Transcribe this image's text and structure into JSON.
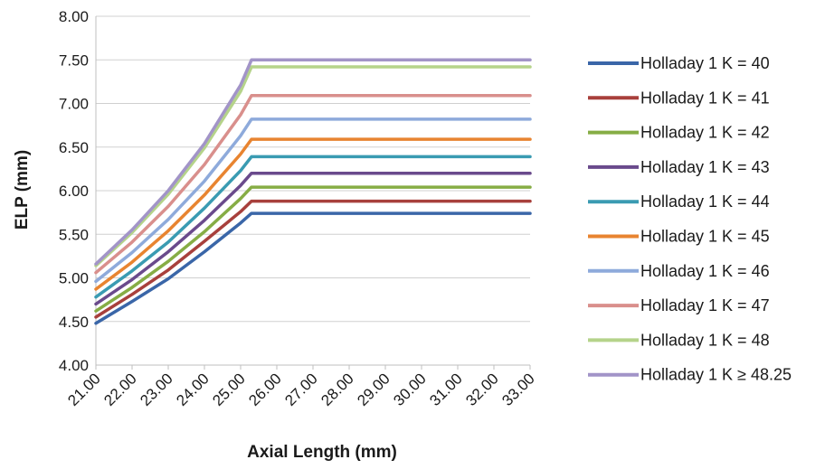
{
  "chart_data": {
    "type": "line",
    "title": "",
    "xlabel": "Axial Length (mm)",
    "ylabel": "ELP (mm)",
    "xlim": [
      21,
      33
    ],
    "ylim": [
      4,
      8
    ],
    "x_ticks": [
      "21.00",
      "22.00",
      "23.00",
      "24.00",
      "25.00",
      "26.00",
      "27.00",
      "28.00",
      "29.00",
      "30.00",
      "31.00",
      "32.00",
      "33.00"
    ],
    "y_ticks": [
      "4.00",
      "4.50",
      "5.00",
      "5.50",
      "6.00",
      "6.50",
      "7.00",
      "7.50",
      "8.00"
    ],
    "grid": "horizontal",
    "legend_position": "right",
    "series": [
      {
        "name": "Holladay 1 K = 40",
        "color": "#3a66a8",
        "points": [
          [
            21.0,
            4.48
          ],
          [
            22.0,
            4.73
          ],
          [
            23.0,
            4.99
          ],
          [
            24.0,
            5.3
          ],
          [
            25.0,
            5.63
          ],
          [
            25.3,
            5.74
          ],
          [
            33.0,
            5.74
          ]
        ]
      },
      {
        "name": "Holladay 1 K = 41",
        "color": "#a8403c",
        "points": [
          [
            21.0,
            4.55
          ],
          [
            22.0,
            4.81
          ],
          [
            23.0,
            5.09
          ],
          [
            24.0,
            5.42
          ],
          [
            25.0,
            5.76
          ],
          [
            25.3,
            5.88
          ],
          [
            33.0,
            5.88
          ]
        ]
      },
      {
        "name": "Holladay 1 K = 42",
        "color": "#86ad45",
        "points": [
          [
            21.0,
            4.62
          ],
          [
            22.0,
            4.89
          ],
          [
            23.0,
            5.19
          ],
          [
            24.0,
            5.53
          ],
          [
            25.0,
            5.91
          ],
          [
            25.3,
            6.04
          ],
          [
            33.0,
            6.04
          ]
        ]
      },
      {
        "name": "Holladay 1 K = 43",
        "color": "#6a4a8c",
        "points": [
          [
            21.0,
            4.7
          ],
          [
            22.0,
            4.98
          ],
          [
            23.0,
            5.3
          ],
          [
            24.0,
            5.66
          ],
          [
            25.0,
            6.06
          ],
          [
            25.3,
            6.2
          ],
          [
            33.0,
            6.2
          ]
        ]
      },
      {
        "name": "Holladay 1 K = 44",
        "color": "#3a9bb2",
        "points": [
          [
            21.0,
            4.78
          ],
          [
            22.0,
            5.08
          ],
          [
            23.0,
            5.41
          ],
          [
            24.0,
            5.8
          ],
          [
            25.0,
            6.23
          ],
          [
            25.3,
            6.39
          ],
          [
            33.0,
            6.39
          ]
        ]
      },
      {
        "name": "Holladay 1 K = 45",
        "color": "#e88430",
        "points": [
          [
            21.0,
            4.87
          ],
          [
            22.0,
            5.18
          ],
          [
            23.0,
            5.54
          ],
          [
            24.0,
            5.95
          ],
          [
            25.0,
            6.42
          ],
          [
            25.3,
            6.59
          ],
          [
            33.0,
            6.59
          ]
        ]
      },
      {
        "name": "Holladay 1 K = 46",
        "color": "#8eaadb",
        "points": [
          [
            21.0,
            4.96
          ],
          [
            22.0,
            5.29
          ],
          [
            23.0,
            5.67
          ],
          [
            24.0,
            6.11
          ],
          [
            25.0,
            6.63
          ],
          [
            25.3,
            6.82
          ],
          [
            33.0,
            6.82
          ]
        ]
      },
      {
        "name": "Holladay 1 K = 47",
        "color": "#d98f8c",
        "points": [
          [
            21.0,
            5.06
          ],
          [
            22.0,
            5.41
          ],
          [
            23.0,
            5.82
          ],
          [
            24.0,
            6.3
          ],
          [
            25.0,
            6.87
          ],
          [
            25.3,
            7.09
          ],
          [
            33.0,
            7.09
          ]
        ]
      },
      {
        "name": "Holladay 1 K = 48",
        "color": "#b5d38a",
        "points": [
          [
            21.0,
            5.14
          ],
          [
            22.0,
            5.52
          ],
          [
            23.0,
            5.96
          ],
          [
            24.0,
            6.49
          ],
          [
            25.0,
            7.14
          ],
          [
            25.3,
            7.42
          ],
          [
            33.0,
            7.42
          ]
        ]
      },
      {
        "name": "Holladay 1 K ≥ 48.25",
        "color": "#a294c8",
        "points": [
          [
            21.0,
            5.16
          ],
          [
            22.0,
            5.55
          ],
          [
            23.0,
            6.0
          ],
          [
            24.0,
            6.54
          ],
          [
            25.0,
            7.21
          ],
          [
            25.3,
            7.5
          ],
          [
            33.0,
            7.5
          ]
        ]
      }
    ]
  }
}
